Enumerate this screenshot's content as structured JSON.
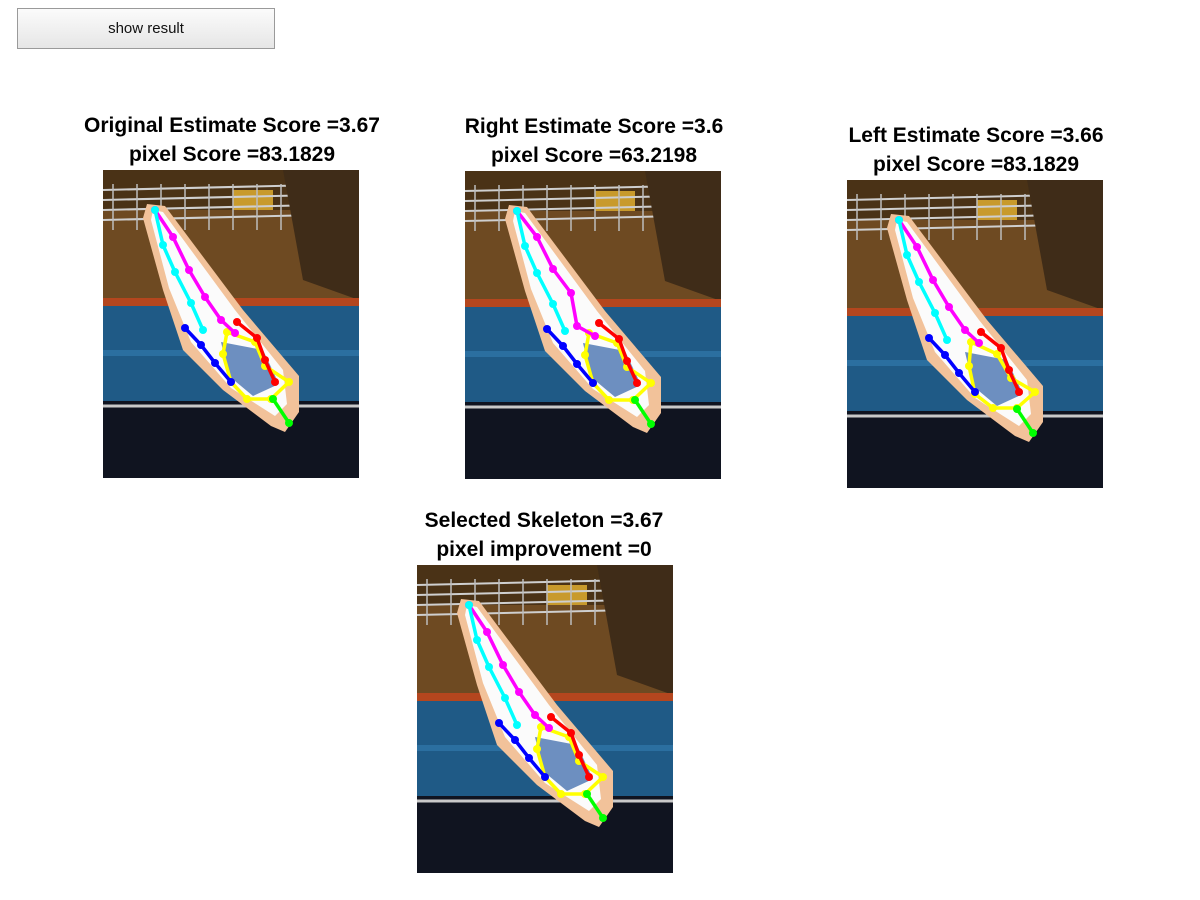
{
  "button": {
    "label": "show result"
  },
  "panels": [
    {
      "id": "original",
      "title": "Original Estimate Score =3.67",
      "subtitle": "pixel Score =83.1829"
    },
    {
      "id": "right",
      "title": "Right Estimate Score =3.6",
      "subtitle": "pixel Score =63.2198"
    },
    {
      "id": "left",
      "title": "Left Estimate Score =3.66",
      "subtitle": "pixel Score =83.1829"
    },
    {
      "id": "selected",
      "title": "Selected Skeleton =3.67",
      "subtitle": "pixel improvement =0"
    }
  ],
  "colors": {
    "limb_1": "#ff00ff",
    "limb_2": "#00ffff",
    "limb_3": "#ff0000",
    "limb_4": "#0000ff",
    "torso": "#ffff00",
    "head": "#00ff00"
  }
}
